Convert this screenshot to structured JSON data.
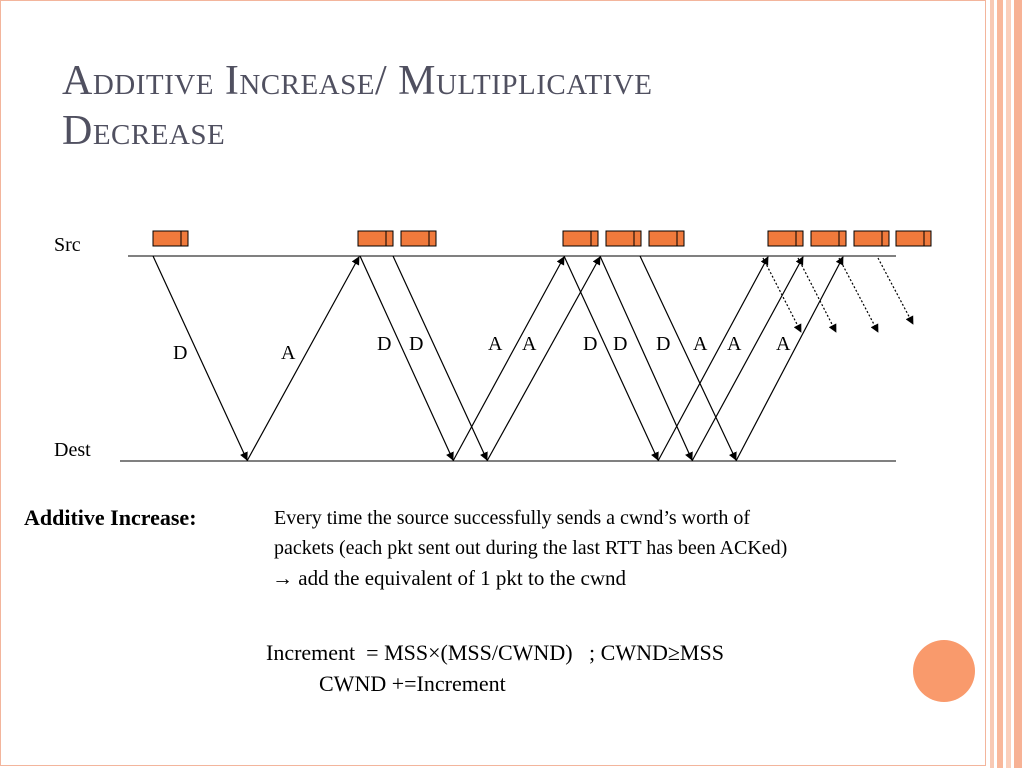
{
  "slide": {
    "title_lines": [
      "Additive Increase/ Multiplicative",
      "Decrease"
    ],
    "colors": {
      "accent": "#f99a6c",
      "packet": "#f07a3c",
      "title": "#505060",
      "border": "#f3b59c"
    }
  },
  "diagram": {
    "src_label": "Src",
    "dest_label": "Dest",
    "flow_labels": [
      "D",
      "A",
      "D",
      "D",
      "A",
      "A",
      "D",
      "D",
      "D",
      "A",
      "A",
      "A"
    ]
  },
  "text": {
    "additive_label": "Additive Increase:",
    "line1": "Every time the source successfully sends a cwnd’s worth of",
    "line2": "packets (each pkt sent out during the last RTT has been ACKed)",
    "line3": "add the equivalent of 1 pkt to the cwnd",
    "arrow_glyph": "→",
    "formula1": "Increment  = MSS×(MSS/CWND)   ; CWND≥MSS",
    "formula2": "CWND +=Increment"
  }
}
